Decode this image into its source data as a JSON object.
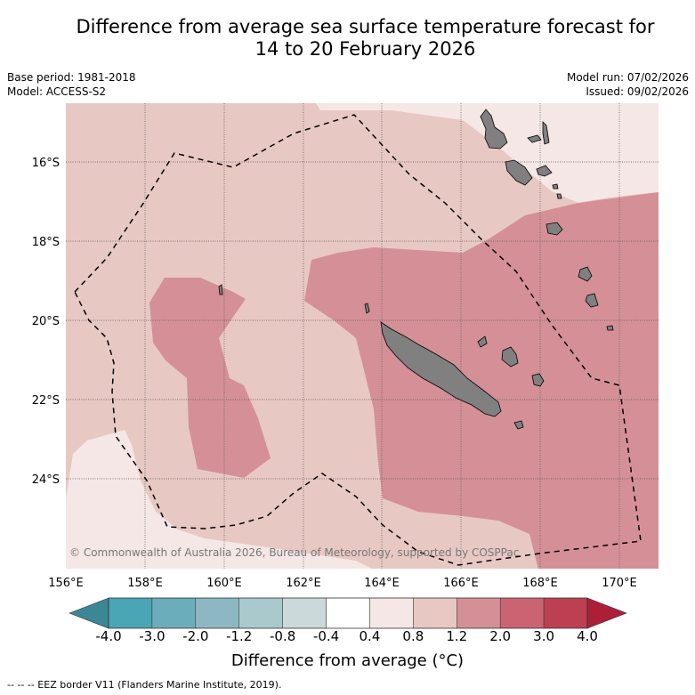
{
  "title": {
    "line1": "Difference from average sea surface temperature forecast for",
    "line2": "14 to 20 February 2026"
  },
  "meta": {
    "base_period": "Base period: 1981-2018",
    "model": "Model: ACCESS-S2",
    "model_run": "Model run: 07/02/2026",
    "issued": "Issued: 09/02/2026"
  },
  "map": {
    "lon_ticks": [
      "156°E",
      "158°E",
      "160°E",
      "162°E",
      "164°E",
      "166°E",
      "168°E",
      "170°E"
    ],
    "lat_ticks": [
      "16°S",
      "18°S",
      "20°S",
      "22°S",
      "24°S"
    ],
    "copyright": "© Commonwealth of Australia 2026, Bureau of Meteorology, supported by COSPPac"
  },
  "colorbar": {
    "tick_labels": [
      "-4.0",
      "-3.0",
      "-2.0",
      "-1.2",
      "-0.8",
      "-0.4",
      "0.4",
      "0.8",
      "1.2",
      "2.0",
      "3.0",
      "4.0"
    ],
    "colors": [
      "#3f96a6",
      "#4aa5b5",
      "#6badbb",
      "#8db8c3",
      "#a9c9cc",
      "#cbd9da",
      "#ffffff",
      "#f5e7e5",
      "#e8c8c3",
      "#d49096",
      "#ca6473",
      "#bd4052"
    ],
    "low_extend_color": "#3b8795",
    "high_extend_color": "#ad1f38",
    "label": "Difference from average (°C)"
  },
  "legend": {
    "eez": "--  --  -- EEZ border V11 (Flanders Marine Institute, 2019)."
  }
}
